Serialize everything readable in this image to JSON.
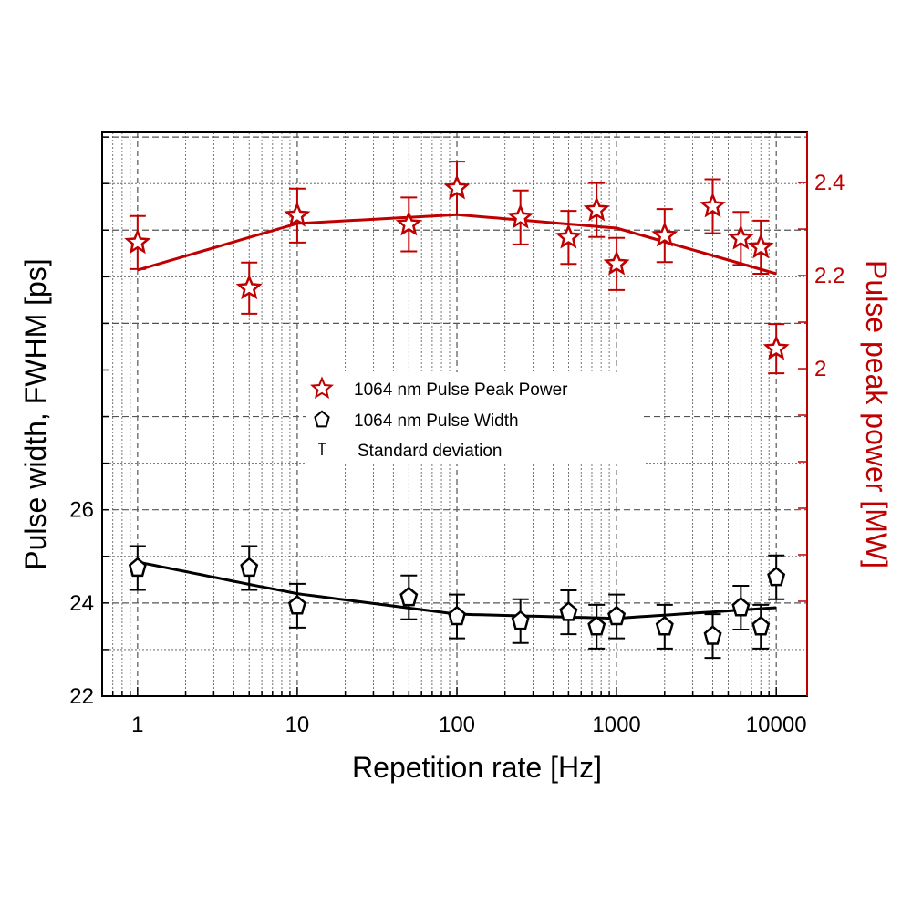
{
  "chart_data": {
    "type": "scatter",
    "xlabel": "Repetition rate [Hz]",
    "ylabel_left": "Pulse width, FWHM [ps]",
    "ylabel_right": "Pulse peak power [MW]",
    "xscale": "log",
    "xlim": [
      0.6,
      15600
    ],
    "ylim_left": [
      22,
      34.1
    ],
    "ylim_right": [
      1.296,
      2.508
    ],
    "x_ticks": [
      "1",
      "10",
      "100",
      "1000",
      "10000"
    ],
    "y_left_ticks": [
      "22",
      "24",
      "26"
    ],
    "y_right_ticks": [
      "2",
      "2.2",
      "2.4"
    ],
    "grid": true,
    "legend_placement": "center",
    "legend": [
      "1064 nm Pulse Peak Power",
      "1064 nm Pulse Width",
      "Standard deviation"
    ],
    "colors": {
      "peak_power": "#c00000",
      "pulse_width": "#000000"
    },
    "x": [
      1,
      5,
      10,
      50,
      100,
      250,
      500,
      750,
      1000,
      2000,
      4000,
      6000,
      8000,
      10000
    ],
    "series": [
      {
        "name": "1064 nm Pulse Peak Power",
        "axis": "right",
        "marker": "star",
        "values": [
          2.271,
          2.173,
          2.329,
          2.31,
          2.388,
          2.325,
          2.282,
          2.341,
          2.225,
          2.286,
          2.349,
          2.28,
          2.261,
          2.043
        ],
        "std": [
          0.057,
          0.055,
          0.058,
          0.058,
          0.057,
          0.058,
          0.057,
          0.058,
          0.056,
          0.057,
          0.058,
          0.057,
          0.057,
          0.053
        ],
        "fit_x": [
          1,
          5,
          10,
          100,
          1000,
          10000
        ],
        "fit_y": [
          2.212,
          2.282,
          2.312,
          2.331,
          2.302,
          2.204
        ]
      },
      {
        "name": "1064 nm Pulse Width",
        "axis": "left",
        "marker": "pentagon",
        "values": [
          24.75,
          24.75,
          23.94,
          24.12,
          23.71,
          23.61,
          23.8,
          23.49,
          23.71,
          23.49,
          23.29,
          23.9,
          23.49,
          24.55
        ],
        "std": [
          0.47,
          0.47,
          0.47,
          0.47,
          0.47,
          0.47,
          0.47,
          0.47,
          0.47,
          0.47,
          0.47,
          0.47,
          0.47,
          0.47
        ],
        "fit_x": [
          1,
          5,
          10,
          100,
          1000,
          10000
        ],
        "fit_y": [
          24.88,
          24.4,
          24.2,
          23.76,
          23.67,
          23.9
        ]
      }
    ]
  }
}
